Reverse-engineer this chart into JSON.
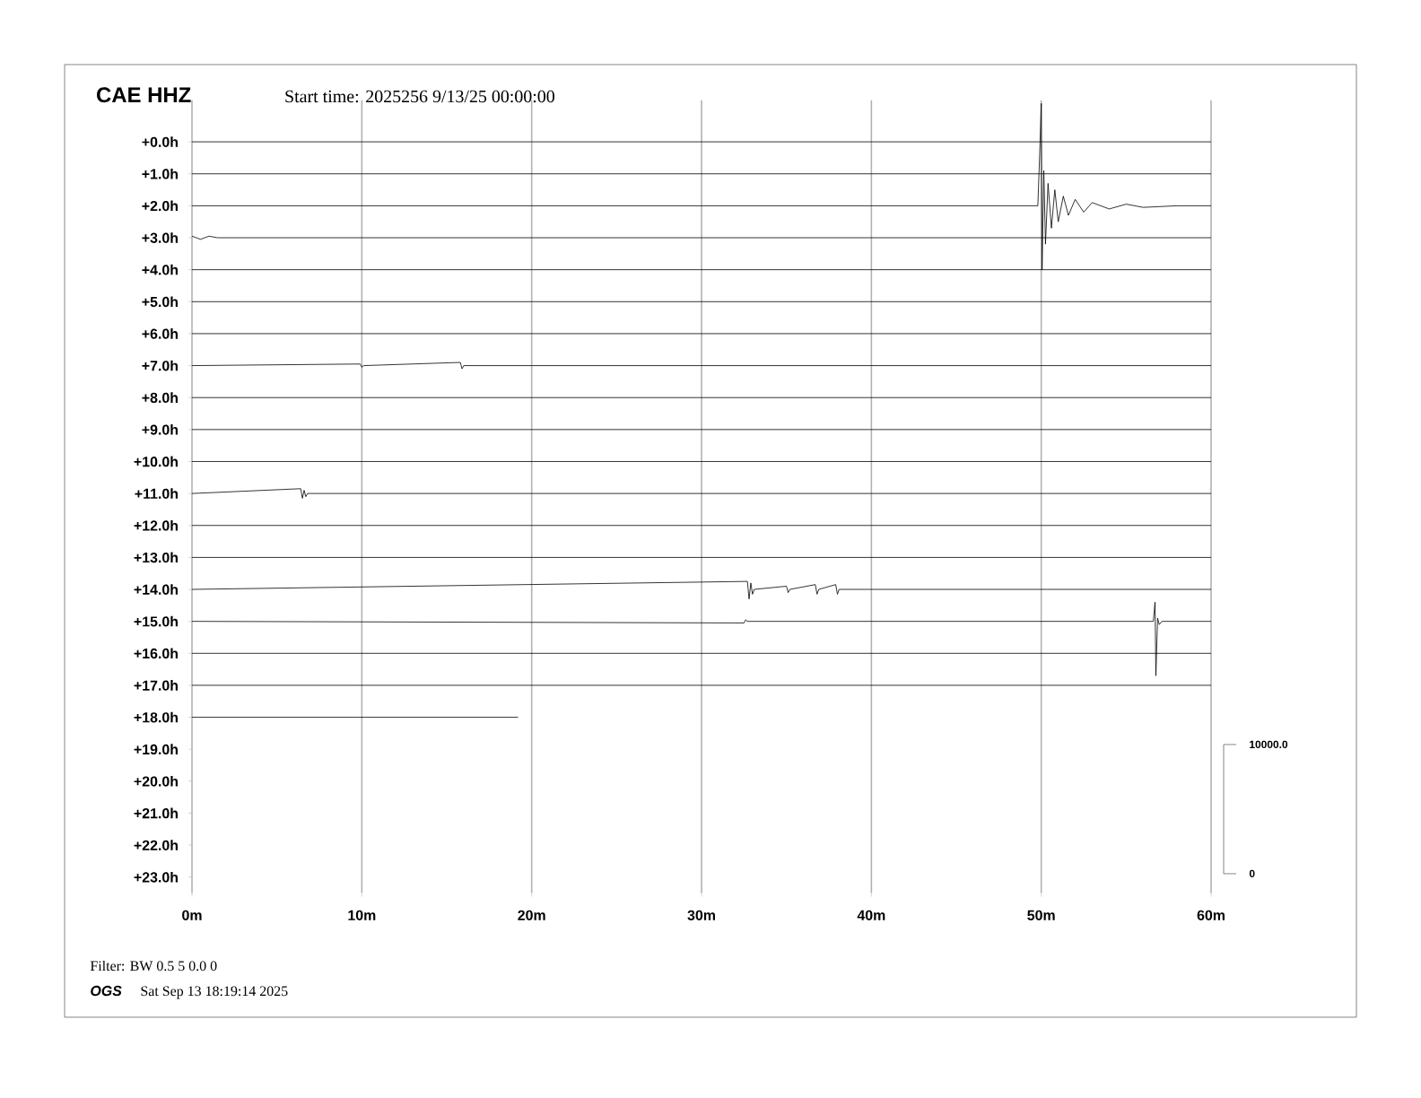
{
  "chart_data": {
    "type": "line",
    "title": "CAE HHZ",
    "subtitle": "Start time: 2025256  9/13/25 00:00:00",
    "annotations": [
      "Filter: BW 0.5 5 0.0 0",
      "OGS",
      "Sat Sep 13 18:19:14 2025",
      "10000.0",
      "0"
    ],
    "xlim": [
      0,
      60
    ],
    "xticks": [
      {
        "value": 0,
        "label": "0m"
      },
      {
        "value": 10,
        "label": "10m"
      },
      {
        "value": 20,
        "label": "20m"
      },
      {
        "value": 30,
        "label": "30m"
      },
      {
        "value": 40,
        "label": "40m"
      },
      {
        "value": 50,
        "label": "50m"
      },
      {
        "value": 60,
        "label": "60m"
      }
    ],
    "ylim": [
      23.5,
      -1.3
    ],
    "yticks": [
      {
        "value": 0,
        "label": "+0.0h"
      },
      {
        "value": 1,
        "label": "+1.0h"
      },
      {
        "value": 2,
        "label": "+2.0h"
      },
      {
        "value": 3,
        "label": "+3.0h"
      },
      {
        "value": 4,
        "label": "+4.0h"
      },
      {
        "value": 5,
        "label": "+5.0h"
      },
      {
        "value": 6,
        "label": "+6.0h"
      },
      {
        "value": 7,
        "label": "+7.0h"
      },
      {
        "value": 8,
        "label": "+8.0h"
      },
      {
        "value": 9,
        "label": "+9.0h"
      },
      {
        "value": 10,
        "label": "+10.0h"
      },
      {
        "value": 11,
        "label": "+11.0h"
      },
      {
        "value": 12,
        "label": "+12.0h"
      },
      {
        "value": 13,
        "label": "+13.0h"
      },
      {
        "value": 14,
        "label": "+14.0h"
      },
      {
        "value": 15,
        "label": "+15.0h"
      },
      {
        "value": 16,
        "label": "+16.0h"
      },
      {
        "value": 17,
        "label": "+17.0h"
      },
      {
        "value": 18,
        "label": "+18.0h"
      },
      {
        "value": 19,
        "label": "+19.0h"
      },
      {
        "value": 20,
        "label": "+20.0h"
      },
      {
        "value": 21,
        "label": "+21.0h"
      },
      {
        "value": 22,
        "label": "+22.0h"
      },
      {
        "value": 23,
        "label": "+23.0h"
      }
    ],
    "grid": "x",
    "series": [
      {
        "color": "#000000",
        "x": [
          0,
          60
        ],
        "values": [
          0,
          0
        ]
      },
      {
        "color": "#000000",
        "x": [
          0,
          60
        ],
        "values": [
          1,
          1
        ]
      },
      {
        "color": "#000000",
        "x": [
          0,
          49.8,
          49.9,
          50.0,
          50.05,
          50.15,
          50.25,
          50.4,
          50.6,
          50.8,
          51.0,
          51.3,
          51.6,
          52,
          52.5,
          53,
          54,
          55,
          56,
          58,
          60
        ],
        "values": [
          2,
          2,
          0.5,
          -1.2,
          4.0,
          0.9,
          3.2,
          1.3,
          2.7,
          1.5,
          2.5,
          1.7,
          2.3,
          1.8,
          2.2,
          1.9,
          2.1,
          1.95,
          2.05,
          2,
          2
        ]
      },
      {
        "color": "#000000",
        "x": [
          0,
          0.5,
          1,
          1.5,
          60
        ],
        "values": [
          2.95,
          3.05,
          2.95,
          3,
          3
        ]
      },
      {
        "color": "#000000",
        "x": [
          0,
          60
        ],
        "values": [
          4,
          4
        ]
      },
      {
        "color": "#000000",
        "x": [
          0,
          60
        ],
        "values": [
          5,
          5
        ]
      },
      {
        "color": "#000000",
        "x": [
          0,
          60
        ],
        "values": [
          6,
          6
        ]
      },
      {
        "color": "#000000",
        "x": [
          0,
          9.9,
          10.0,
          10.1,
          15.8,
          15.9,
          16.0,
          60
        ],
        "values": [
          7,
          6.95,
          7.05,
          7,
          6.9,
          7.1,
          7,
          7
        ]
      },
      {
        "color": "#000000",
        "x": [
          0,
          60
        ],
        "values": [
          8,
          8
        ]
      },
      {
        "color": "#000000",
        "x": [
          0,
          60
        ],
        "values": [
          9,
          9
        ]
      },
      {
        "color": "#000000",
        "x": [
          0,
          60
        ],
        "values": [
          10,
          10
        ]
      },
      {
        "color": "#000000",
        "x": [
          0,
          6.4,
          6.5,
          6.6,
          6.7,
          6.8,
          60
        ],
        "values": [
          11,
          10.85,
          11.15,
          10.9,
          11.1,
          11,
          11
        ]
      },
      {
        "color": "#000000",
        "x": [
          0,
          60
        ],
        "values": [
          12,
          12
        ]
      },
      {
        "color": "#000000",
        "x": [
          0,
          60
        ],
        "values": [
          13,
          13
        ]
      },
      {
        "color": "#000000",
        "x": [
          0,
          32.7,
          32.8,
          32.9,
          33.0,
          33.1,
          35.0,
          35.1,
          35.2,
          36.7,
          36.8,
          36.9,
          37.9,
          38.0,
          38.1,
          60
        ],
        "values": [
          14,
          13.75,
          14.3,
          13.8,
          14.15,
          14,
          13.9,
          14.1,
          14,
          13.85,
          14.15,
          14,
          13.85,
          14.15,
          14,
          14
        ]
      },
      {
        "color": "#000000",
        "x": [
          0,
          32.5,
          32.6,
          32.7,
          56.6,
          56.7,
          56.75,
          56.85,
          56.95,
          57.1,
          60
        ],
        "values": [
          15,
          15.05,
          14.95,
          15,
          15,
          14.4,
          16.7,
          14.9,
          15.1,
          15,
          15
        ]
      },
      {
        "color": "#000000",
        "x": [
          0,
          60
        ],
        "values": [
          16,
          16
        ]
      },
      {
        "color": "#000000",
        "x": [
          0,
          60
        ],
        "values": [
          17,
          17
        ]
      },
      {
        "color": "#000000",
        "x": [
          0,
          19.2
        ],
        "values": [
          18,
          18
        ]
      }
    ]
  }
}
